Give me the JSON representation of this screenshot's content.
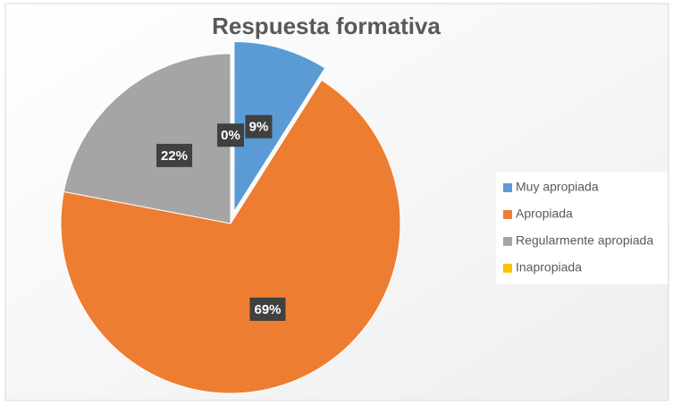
{
  "chart_data": {
    "type": "pie",
    "title": "Respuesta formativa",
    "categories": [
      "Muy apropiada",
      "Apropiada",
      "Regularmente apropiada",
      "Inapropiada"
    ],
    "values": [
      9,
      69,
      22,
      0
    ],
    "value_labels": [
      "9%",
      "69%",
      "22%",
      "0%"
    ],
    "colors": [
      "#5b9bd5",
      "#ed7d31",
      "#a5a5a5",
      "#ffc000"
    ],
    "legend": "right"
  }
}
